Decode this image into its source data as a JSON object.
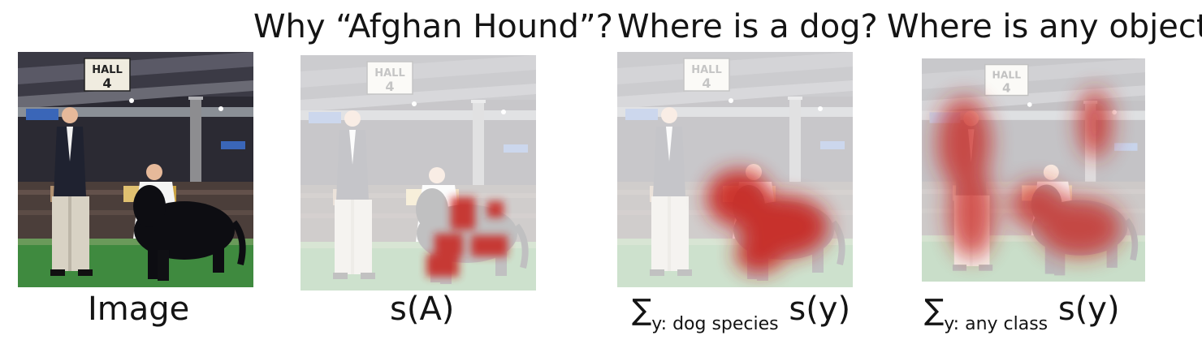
{
  "titles": {
    "afghan": "Why “Afghan Hound”?",
    "dog": "Where is a dog?",
    "object": "Where is any object?"
  },
  "captions": {
    "image": "Image",
    "afghan": "s(A)",
    "dog_sigma": "∑",
    "dog_sub": "y: dog species",
    "dog_fn": " s(y)",
    "object_sigma": "∑",
    "object_sub": "y: any class",
    "object_fn": " s(y)"
  },
  "sign": {
    "line1": "HALL",
    "line2": "4"
  },
  "colors": {
    "heat": "#c8201a",
    "grass": "#3f8a3f",
    "background": "#ffffff"
  }
}
